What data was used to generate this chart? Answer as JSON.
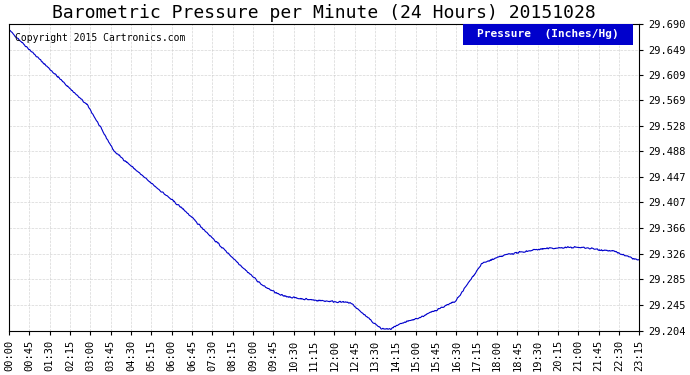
{
  "title": "Barometric Pressure per Minute (24 Hours) 20151028",
  "copyright_text": "Copyright 2015 Cartronics.com",
  "legend_label": "Pressure  (Inches/Hg)",
  "background_color": "#ffffff",
  "plot_background_color": "#ffffff",
  "line_color": "#0000cc",
  "grid_color": "#cccccc",
  "legend_bg": "#0000cc",
  "legend_fg": "#ffffff",
  "ylim": [
    29.204,
    29.69
  ],
  "yticks": [
    29.204,
    29.245,
    29.285,
    29.326,
    29.366,
    29.407,
    29.447,
    29.488,
    29.528,
    29.569,
    29.609,
    29.649,
    29.69
  ],
  "xtick_labels": [
    "00:00",
    "00:45",
    "01:30",
    "02:15",
    "03:00",
    "03:45",
    "04:30",
    "05:15",
    "06:00",
    "06:45",
    "07:30",
    "08:15",
    "09:00",
    "09:45",
    "10:30",
    "11:15",
    "12:00",
    "12:45",
    "13:30",
    "14:15",
    "15:00",
    "15:45",
    "16:30",
    "17:15",
    "18:00",
    "18:45",
    "19:30",
    "20:15",
    "21:00",
    "21:45",
    "22:30",
    "23:15"
  ],
  "title_fontsize": 13,
  "tick_fontsize": 7.5,
  "copyright_fontsize": 7,
  "legend_fontsize": 8
}
